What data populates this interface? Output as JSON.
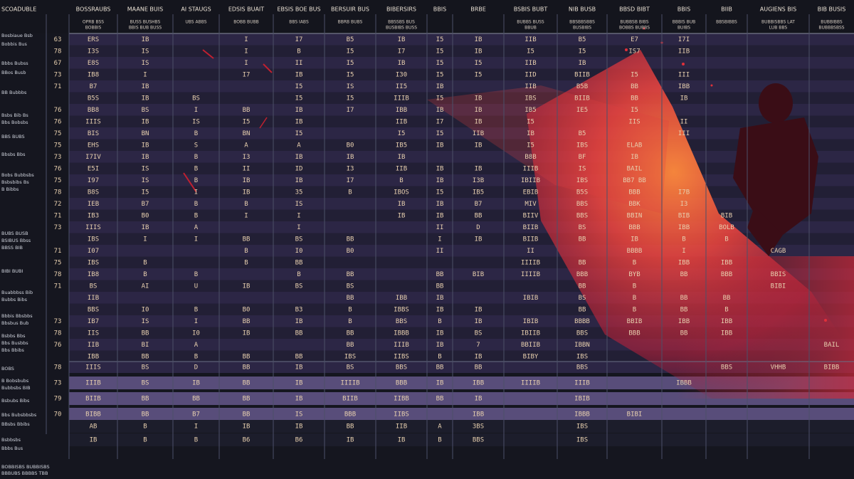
{
  "table": {
    "corner": "SCOADUBLE",
    "columns": [
      {
        "title": "BOSSRAUBS",
        "sub": [
          "OPRB BSS",
          "BOBBIS"
        ]
      },
      {
        "title": "MAANE BUIS",
        "sub": [
          "BUSS BUSHBS",
          "BBIS BUB BUSS"
        ]
      },
      {
        "title": "AI STAUGS",
        "sub": [
          "UBS ABBS"
        ]
      },
      {
        "title": "EDSIS BUAIT",
        "sub": [
          "BOBB BUBB"
        ]
      },
      {
        "title": "EBSIS BOE BUS",
        "sub": [
          "BBS IABS"
        ]
      },
      {
        "title": "BERSUIR BUS",
        "sub": [
          "BBRB BUBS"
        ]
      },
      {
        "title": "BIBERSIRS",
        "sub": [
          "BBSSBS BUS",
          "BUSBIBS BUSS"
        ]
      },
      {
        "title": "BBIS"
      },
      {
        "title": "BRBE"
      },
      {
        "title": "BSBIS BUBT",
        "sub": [
          "BUBBS BUSS",
          "BBUB"
        ]
      },
      {
        "title": "NIB BUSB",
        "sub": [
          "BBSBBSBBS",
          "BUSBIBS"
        ]
      },
      {
        "title": "BBSD BIBT",
        "sub": [
          "BUBBSB BIBS",
          "BOBBS BUBBS"
        ]
      },
      {
        "title": "BBIS",
        "sub": [
          "BBBIS BUB",
          "BUIBS"
        ]
      },
      {
        "title": "BIIB",
        "sub": [
          "BBSBIBBS"
        ]
      },
      {
        "title": "AUGIENS BIS",
        "sub": [
          "BUBBISBBS LAT",
          "LUB BBS"
        ]
      },
      {
        "title": "BIB BUSIS",
        "sub": [
          "BUBBIBBS",
          "BUBBBSBSS"
        ]
      }
    ],
    "rows": [
      [
        "63",
        "ERS",
        "IB",
        null,
        "I",
        "I7",
        "B5",
        "IB",
        "I5",
        "IB",
        "IIB",
        "B5",
        "E7",
        "I7I",
        null,
        null,
        null
      ],
      [
        "78",
        "I3S",
        "IS",
        null,
        "I",
        "B",
        "I5",
        "I7",
        "I5",
        "IB",
        "I5",
        "I5",
        "IS7",
        "IIB",
        null,
        null,
        null
      ],
      [
        "67",
        "E8S",
        "IS",
        null,
        "I",
        "II",
        "I5",
        "IB",
        "I5",
        "I5",
        "IIB",
        "IB",
        null,
        null,
        null,
        null,
        null
      ],
      [
        "73",
        "IB8",
        "I",
        null,
        "I7",
        "IB",
        "I5",
        "I30",
        "I5",
        "I5",
        "IID",
        "BIIB",
        "I5",
        "III",
        null,
        null,
        null
      ],
      [
        "71",
        "B7",
        "IB",
        null,
        null,
        "I5",
        "IS",
        "II5",
        "IB",
        null,
        "IIB",
        "B5B",
        "BB",
        "IBB",
        null,
        null,
        null
      ],
      [
        null,
        "B5S",
        "IB",
        "BS",
        null,
        "I5",
        "I5",
        "IIIB",
        "I5",
        "IB",
        "IBS",
        "BIIB",
        "BB",
        "IB",
        null,
        null,
        null
      ],
      [
        "76",
        "BB8",
        "BS",
        "I",
        "BB",
        "IB",
        "I7",
        "IBB",
        "IB",
        "IB",
        "IB5",
        "IE5",
        "I5",
        null,
        null,
        null,
        null
      ],
      [
        "76",
        "IIIS",
        "IB",
        "IS",
        "I5",
        "IB",
        null,
        "IIB",
        "I7",
        "IB",
        "I5",
        null,
        "IIS",
        "II",
        null,
        null,
        null
      ],
      [
        "75",
        "BIS",
        "BN",
        "B",
        "BN",
        "I5",
        null,
        "I5",
        "I5",
        "IIB",
        "IB",
        "B5",
        null,
        "III",
        null,
        null,
        null
      ],
      [
        "75",
        "EHS",
        "IB",
        "S",
        "A",
        "A",
        "B0",
        "IB5",
        "IB",
        "IB",
        "I5",
        "IBS",
        "ELAB",
        null,
        null,
        null,
        null
      ],
      [
        "73",
        "I7IV",
        "IB",
        "B",
        "I3",
        "IB",
        "IB",
        "IB",
        null,
        null,
        "B8B",
        "BF",
        "IB",
        null,
        null,
        null,
        null
      ],
      [
        "76",
        "E5I",
        "IS",
        "B",
        "II",
        "ID",
        "I3",
        "IIB",
        "IB",
        "IB",
        "IIIB",
        "IS",
        "BAIL",
        null,
        null,
        null,
        null
      ],
      [
        "75",
        "I97",
        "IS",
        "B",
        "IB",
        "IB",
        "I7",
        "B",
        "IB",
        "I3B",
        "IBIIB",
        "IBS",
        "BB7 BB",
        null,
        null,
        null,
        null
      ],
      [
        "78",
        "B8S",
        "I5",
        "I",
        "IB",
        "35",
        "B",
        "IBOS",
        "I5",
        "IB5",
        "EBIB",
        "B5S",
        "BBB",
        "I7B",
        null,
        null,
        null
      ],
      [
        "72",
        "IEB",
        "B7",
        "B",
        "B",
        "IS",
        null,
        "IB",
        "IB",
        "B7",
        "MIV",
        "BBS",
        "BBK",
        "I3",
        null,
        null,
        null
      ],
      [
        "71",
        "IB3",
        "B0",
        "B",
        "I",
        "I",
        null,
        "IB",
        "IB",
        "BB",
        "BIIV",
        "BBS",
        "BBIN",
        "BIB",
        "BIB",
        null,
        null
      ],
      [
        "73",
        "IIIS",
        "IB",
        "A",
        null,
        "I",
        null,
        null,
        "II",
        "D",
        "BIIB",
        "BS",
        "BBB",
        "IBB",
        "BOLB",
        null,
        null
      ],
      [
        null,
        "IBS",
        "I",
        "I",
        "BB",
        "BS",
        "BB",
        null,
        "I",
        "IB",
        "BIIB",
        "BB",
        "IB",
        "B",
        "B",
        null,
        null
      ],
      [
        "71",
        "I07",
        null,
        null,
        "B",
        "I0",
        "B0",
        null,
        "II",
        null,
        "II",
        null,
        "BBBB",
        "I",
        null,
        "CAGB",
        null
      ],
      [
        "75",
        "IBS",
        "B",
        null,
        "B",
        "BB",
        null,
        null,
        null,
        null,
        "IIIIB",
        "BB",
        "B",
        "IBB",
        "IBB",
        null,
        null
      ],
      [
        "78",
        "IB8",
        "B",
        "B",
        null,
        "B",
        "BB",
        null,
        "BB",
        "BIB",
        "IIIIB",
        "BBB",
        "BYB",
        "BB",
        "BBB",
        "BBIS",
        null
      ],
      [
        "71",
        "BS",
        "AI",
        "U",
        "IB",
        "BS",
        "BS",
        null,
        "BB",
        null,
        null,
        "BB",
        "B",
        null,
        null,
        "BIBI",
        null
      ],
      [
        null,
        "IIB",
        null,
        null,
        null,
        null,
        "BB",
        "IBB",
        "IB",
        null,
        "IBIB",
        "BS",
        "B",
        "BB",
        "BB",
        null,
        null
      ],
      [
        null,
        "BBS",
        "I0",
        "B",
        "B0",
        "B3",
        "B",
        "IBBS",
        "IB",
        "IB",
        null,
        "BB",
        "B",
        "BB",
        "B",
        null,
        null
      ],
      [
        "73",
        "IB7",
        "IS",
        "I",
        "BB",
        "IB",
        "B",
        "BBS",
        "B",
        "IB",
        "IBIB",
        "BBBB",
        "BBIB",
        "IBB",
        "IBB",
        null,
        null
      ],
      [
        "78",
        "IIS",
        "BB",
        "I0",
        "IB",
        "BB",
        "BB",
        "IBBB",
        "IB",
        "BS",
        "IBIIB",
        "BBS",
        "BBB",
        "BB",
        "IBB",
        null,
        null
      ],
      [
        "76",
        "IIB",
        "BI",
        "A",
        null,
        null,
        "BB",
        "IIIB",
        "IB",
        "7",
        "BBIIB",
        "IBBN",
        null,
        null,
        null,
        null,
        "BAIL"
      ],
      [
        null,
        "IBB",
        "BB",
        "B",
        "BB",
        "BB",
        "IBS",
        "IIBS",
        "B",
        "IB",
        "BIBY",
        "IBS",
        null,
        null,
        null,
        null,
        null
      ],
      [
        "78",
        "IIIS",
        "BS",
        "D",
        "BB",
        "IB",
        "BS",
        "BBS",
        "BB",
        "BB",
        null,
        "BBS",
        null,
        null,
        "BBS",
        "VHHB",
        "BIBB"
      ],
      [
        "73",
        "IIIB",
        "BS",
        "IB",
        "BB",
        "IB",
        "IIIIB",
        "BBB",
        "IB",
        "IBB",
        "IIIIB",
        "IIIB",
        null,
        "IBBB",
        null,
        null,
        null
      ],
      [
        "79",
        "BIIB",
        "BB",
        "BB",
        "BB",
        "IB",
        "BIIB",
        "IIBB",
        "BB",
        "IB",
        null,
        "IBIB",
        null,
        null,
        null,
        null,
        null
      ],
      [
        "70",
        "BIBB",
        "BB",
        "B7",
        "BB",
        "IS",
        "BBB",
        "IIBS",
        null,
        "IBB",
        null,
        "IBBB",
        "BIBI",
        null,
        null,
        null,
        null
      ],
      [
        null,
        "AB",
        "B",
        "I",
        "IB",
        "IB",
        "BB",
        "IIB",
        "A",
        "3BS",
        null,
        "IBS",
        null,
        null,
        null,
        null,
        null
      ],
      [
        null,
        "IB",
        "B",
        "B",
        "B6",
        "B6",
        "IB",
        "IB",
        "B",
        "BBS",
        null,
        "IBS",
        null,
        null,
        null,
        null,
        null
      ]
    ]
  },
  "sidebar": [
    "Bosbiaue Bsb",
    "Bobbis Bus",
    "Bbbs Bubss",
    "BBos Busb",
    "BB Bubbbs",
    "Bsbs Bib Bs",
    "Bbs Bobsbs",
    "BBS BUBS",
    "Bbsbs Bbs",
    "Bobs Bubbsbs",
    "Bsbsbibs Bs",
    "B Bibbs",
    "BUBS BUSB",
    "BSIBUS Bbss",
    "BBSS BIB",
    "BIBI BUBI",
    "Buabbbss Bib",
    "Bubbs Bibs",
    "Bbbis Bbsbbs",
    "Bbsbus Bub",
    "Bsbbs Bbs",
    "Bbs Busbbs",
    "Bbs Bbibs",
    "BOBS",
    "B Bobsbubs",
    "Bubbsbs BIB",
    "Bsbubs Bibs",
    "Bbs Bubsbbsbs",
    "BBsbs Bbibs",
    "Bsbbsbs",
    "Bbbs Bus"
  ],
  "footer": [
    "BOBBISBS BUBBISBS",
    "BBBUBS BBBBS TBB"
  ]
}
